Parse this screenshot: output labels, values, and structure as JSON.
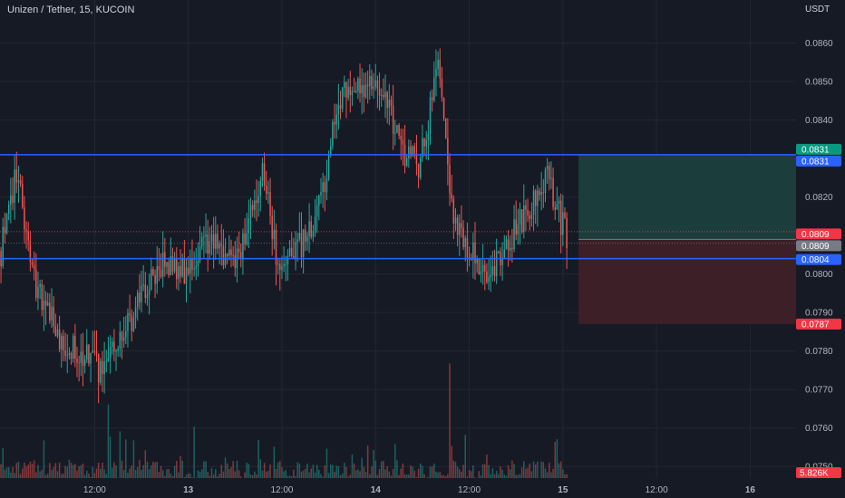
{
  "header": {
    "title": "Unizen / Tether, 15, KUCOIN",
    "currency": "USDT"
  },
  "colors": {
    "background": "#161a25",
    "grid": "#242733",
    "text": "#b2b5be",
    "up": "#26a69a",
    "down": "#ef5350",
    "level_line": "#2962ff",
    "profit_zone": "#1b3d3c",
    "loss_zone": "#3d1f27"
  },
  "chart_data": {
    "type": "candlestick",
    "symbol": "Unizen / Tether",
    "interval": "15",
    "exchange": "KUCOIN",
    "y_axis": {
      "unit": "USDT",
      "range": [
        0.0747,
        0.0866
      ],
      "ticks": [
        0.086,
        0.085,
        0.084,
        0.082,
        0.08,
        0.079,
        0.078,
        0.077,
        0.076,
        0.075
      ],
      "tick_labels": [
        "0.0860",
        "0.0850",
        "0.0840",
        "0.0820",
        "0.0800",
        "0.0790",
        "0.0780",
        "0.0770",
        "0.0760",
        "0.0750"
      ]
    },
    "x_axis": {
      "labels": [
        {
          "label": "12:00",
          "bar": 48
        },
        {
          "label": "13",
          "bar": 96
        },
        {
          "label": "12:00",
          "bar": 144
        },
        {
          "label": "14",
          "bar": 192
        },
        {
          "label": "12:00",
          "bar": 240
        },
        {
          "label": "15",
          "bar": 288
        },
        {
          "label": "12:00",
          "bar": 336
        },
        {
          "label": "16",
          "bar": 384
        }
      ]
    },
    "bars_total_visible": 408,
    "price_path": [
      {
        "bar": 0,
        "price": 0.0806
      },
      {
        "bar": 8,
        "price": 0.0826
      },
      {
        "bar": 18,
        "price": 0.0797
      },
      {
        "bar": 30,
        "price": 0.0783
      },
      {
        "bar": 52,
        "price": 0.0775
      },
      {
        "bar": 66,
        "price": 0.0788
      },
      {
        "bar": 80,
        "price": 0.0802
      },
      {
        "bar": 96,
        "price": 0.0801
      },
      {
        "bar": 104,
        "price": 0.081
      },
      {
        "bar": 122,
        "price": 0.0803
      },
      {
        "bar": 134,
        "price": 0.0828
      },
      {
        "bar": 142,
        "price": 0.0802
      },
      {
        "bar": 154,
        "price": 0.0808
      },
      {
        "bar": 164,
        "price": 0.0818
      },
      {
        "bar": 172,
        "price": 0.0845
      },
      {
        "bar": 184,
        "price": 0.085
      },
      {
        "bar": 194,
        "price": 0.0848
      },
      {
        "bar": 206,
        "price": 0.0832
      },
      {
        "bar": 214,
        "price": 0.0828
      },
      {
        "bar": 224,
        "price": 0.0852
      },
      {
        "bar": 232,
        "price": 0.0815
      },
      {
        "bar": 240,
        "price": 0.0806
      },
      {
        "bar": 250,
        "price": 0.0801
      },
      {
        "bar": 264,
        "price": 0.0811
      },
      {
        "bar": 280,
        "price": 0.0826
      },
      {
        "bar": 290,
        "price": 0.0809
      }
    ],
    "volume": {
      "last_label": "5.826K",
      "spikes": [
        {
          "bar": 55,
          "volume": 5.0
        },
        {
          "bar": 230,
          "volume": 7.8
        },
        {
          "bar": 292,
          "volume": 5.0
        }
      ]
    },
    "levels": [
      {
        "name": "upper",
        "price": 0.0831
      },
      {
        "name": "lower",
        "price": 0.0804
      }
    ],
    "position": {
      "entry": 0.0809,
      "target": 0.0831,
      "stop": 0.0787,
      "start_bar": 296,
      "end_bar": 408
    },
    "price_labels": [
      {
        "role": "target",
        "text": "0.0831",
        "value": 0.0831,
        "color": "#089981"
      },
      {
        "role": "upper-level",
        "text": "0.0831",
        "value": 0.0831,
        "color": "#2962ff"
      },
      {
        "role": "last-price",
        "text": "0.0809",
        "value": 0.0809,
        "color": "#f23645"
      },
      {
        "role": "entry",
        "text": "0.0809",
        "value": 0.0809,
        "color": "#787b86"
      },
      {
        "role": "lower-level",
        "text": "0.0804",
        "value": 0.0804,
        "color": "#2962ff"
      },
      {
        "role": "stop",
        "text": "0.0787",
        "value": 0.0787,
        "color": "#f23645"
      }
    ]
  }
}
